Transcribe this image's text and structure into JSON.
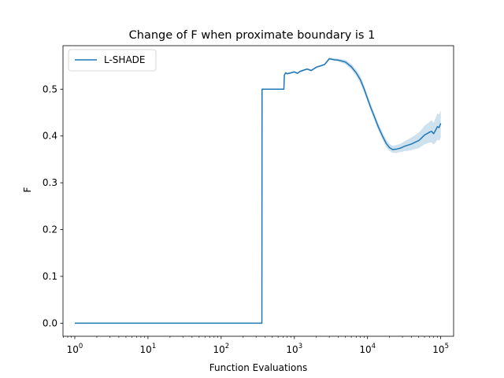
{
  "chart_data": {
    "type": "line",
    "title": "Change of F when proximate boundary is 1",
    "xlabel": "Function Evaluations",
    "ylabel": "F",
    "xscale": "log",
    "xlim": [
      0.69,
      150000
    ],
    "ylim": [
      -0.028,
      0.593
    ],
    "xticks": [
      {
        "value": 1,
        "base": "10",
        "exp": "0"
      },
      {
        "value": 10,
        "base": "10",
        "exp": "1"
      },
      {
        "value": 100,
        "base": "10",
        "exp": "2"
      },
      {
        "value": 1000,
        "base": "10",
        "exp": "3"
      },
      {
        "value": 10000,
        "base": "10",
        "exp": "4"
      },
      {
        "value": 100000,
        "base": "10",
        "exp": "5"
      }
    ],
    "yticks": [
      {
        "value": 0.0,
        "label": "0.0"
      },
      {
        "value": 0.1,
        "label": "0.1"
      },
      {
        "value": 0.2,
        "label": "0.2"
      },
      {
        "value": 0.3,
        "label": "0.3"
      },
      {
        "value": 0.4,
        "label": "0.4"
      },
      {
        "value": 0.5,
        "label": "0.5"
      }
    ],
    "grid": false,
    "legend": {
      "placement": "top-left",
      "entries": [
        "L-SHADE"
      ]
    },
    "series": [
      {
        "name": "L-SHADE",
        "color": "#1f77b4",
        "band_color": "#1f77b4",
        "band_opacity": 0.22,
        "x": [
          1,
          360,
          362,
          720,
          730,
          760,
          800,
          900,
          1000,
          1100,
          1200,
          1300,
          1500,
          1700,
          2000,
          2300,
          2600,
          3000,
          3500,
          4000,
          4500,
          5000,
          6000,
          7000,
          8000,
          9000,
          10000,
          11000,
          12000,
          14000,
          16000,
          18000,
          20000,
          22000,
          25000,
          28000,
          30000,
          32000,
          35000,
          40000,
          45000,
          50000,
          55000,
          60000,
          65000,
          70000,
          75000,
          80000,
          85000,
          90000,
          95000,
          100000
        ],
        "y": [
          0.0,
          0.0,
          0.5,
          0.5,
          0.53,
          0.535,
          0.533,
          0.535,
          0.537,
          0.534,
          0.538,
          0.54,
          0.543,
          0.54,
          0.547,
          0.55,
          0.553,
          0.565,
          0.563,
          0.562,
          0.56,
          0.558,
          0.548,
          0.535,
          0.52,
          0.5,
          0.48,
          0.462,
          0.447,
          0.42,
          0.4,
          0.384,
          0.375,
          0.371,
          0.372,
          0.374,
          0.376,
          0.378,
          0.38,
          0.383,
          0.387,
          0.39,
          0.396,
          0.402,
          0.405,
          0.408,
          0.41,
          0.405,
          0.412,
          0.42,
          0.418,
          0.427
        ],
        "lower": [
          0.0,
          0.0,
          0.5,
          0.5,
          0.528,
          0.533,
          0.531,
          0.533,
          0.535,
          0.532,
          0.536,
          0.538,
          0.541,
          0.538,
          0.545,
          0.548,
          0.551,
          0.563,
          0.561,
          0.559,
          0.556,
          0.553,
          0.542,
          0.528,
          0.512,
          0.492,
          0.472,
          0.454,
          0.439,
          0.412,
          0.392,
          0.376,
          0.368,
          0.364,
          0.364,
          0.366,
          0.366,
          0.368,
          0.368,
          0.37,
          0.372,
          0.374,
          0.378,
          0.382,
          0.384,
          0.386,
          0.386,
          0.382,
          0.386,
          0.392,
          0.39,
          0.396
        ],
        "upper": [
          0.0,
          0.0,
          0.5,
          0.5,
          0.532,
          0.537,
          0.535,
          0.537,
          0.539,
          0.536,
          0.54,
          0.542,
          0.545,
          0.542,
          0.549,
          0.552,
          0.555,
          0.568,
          0.566,
          0.565,
          0.564,
          0.563,
          0.554,
          0.542,
          0.528,
          0.508,
          0.488,
          0.47,
          0.455,
          0.428,
          0.408,
          0.392,
          0.383,
          0.379,
          0.381,
          0.383,
          0.386,
          0.389,
          0.392,
          0.397,
          0.402,
          0.407,
          0.414,
          0.422,
          0.426,
          0.43,
          0.434,
          0.428,
          0.438,
          0.448,
          0.446,
          0.455
        ]
      }
    ]
  }
}
